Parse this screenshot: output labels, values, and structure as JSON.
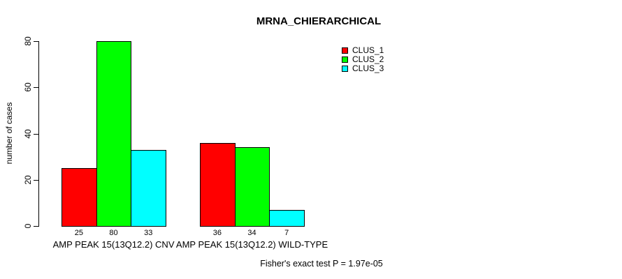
{
  "chart_data": {
    "type": "bar",
    "title": "MRNA_CHIERARCHICAL",
    "ylabel": "number of cases",
    "xlabel": "",
    "ylim": [
      0,
      80
    ],
    "yticks": [
      0,
      20,
      40,
      60,
      80
    ],
    "grid": false,
    "legend_position": "top-right",
    "bar_value_labels_shown": true,
    "categories": [
      "AMP PEAK 15(13Q12.2) CNV",
      "AMP PEAK 15(13Q12.2) WILD-TYPE"
    ],
    "series": [
      {
        "name": "CLUS_1",
        "color": "#ff0000",
        "values": [
          25,
          36
        ]
      },
      {
        "name": "CLUS_2",
        "color": "#00ff00",
        "values": [
          80,
          34
        ]
      },
      {
        "name": "CLUS_3",
        "color": "#00ffff",
        "values": [
          33,
          7
        ]
      }
    ],
    "annotation": "Fisher's exact test P = 1.97e-05"
  }
}
